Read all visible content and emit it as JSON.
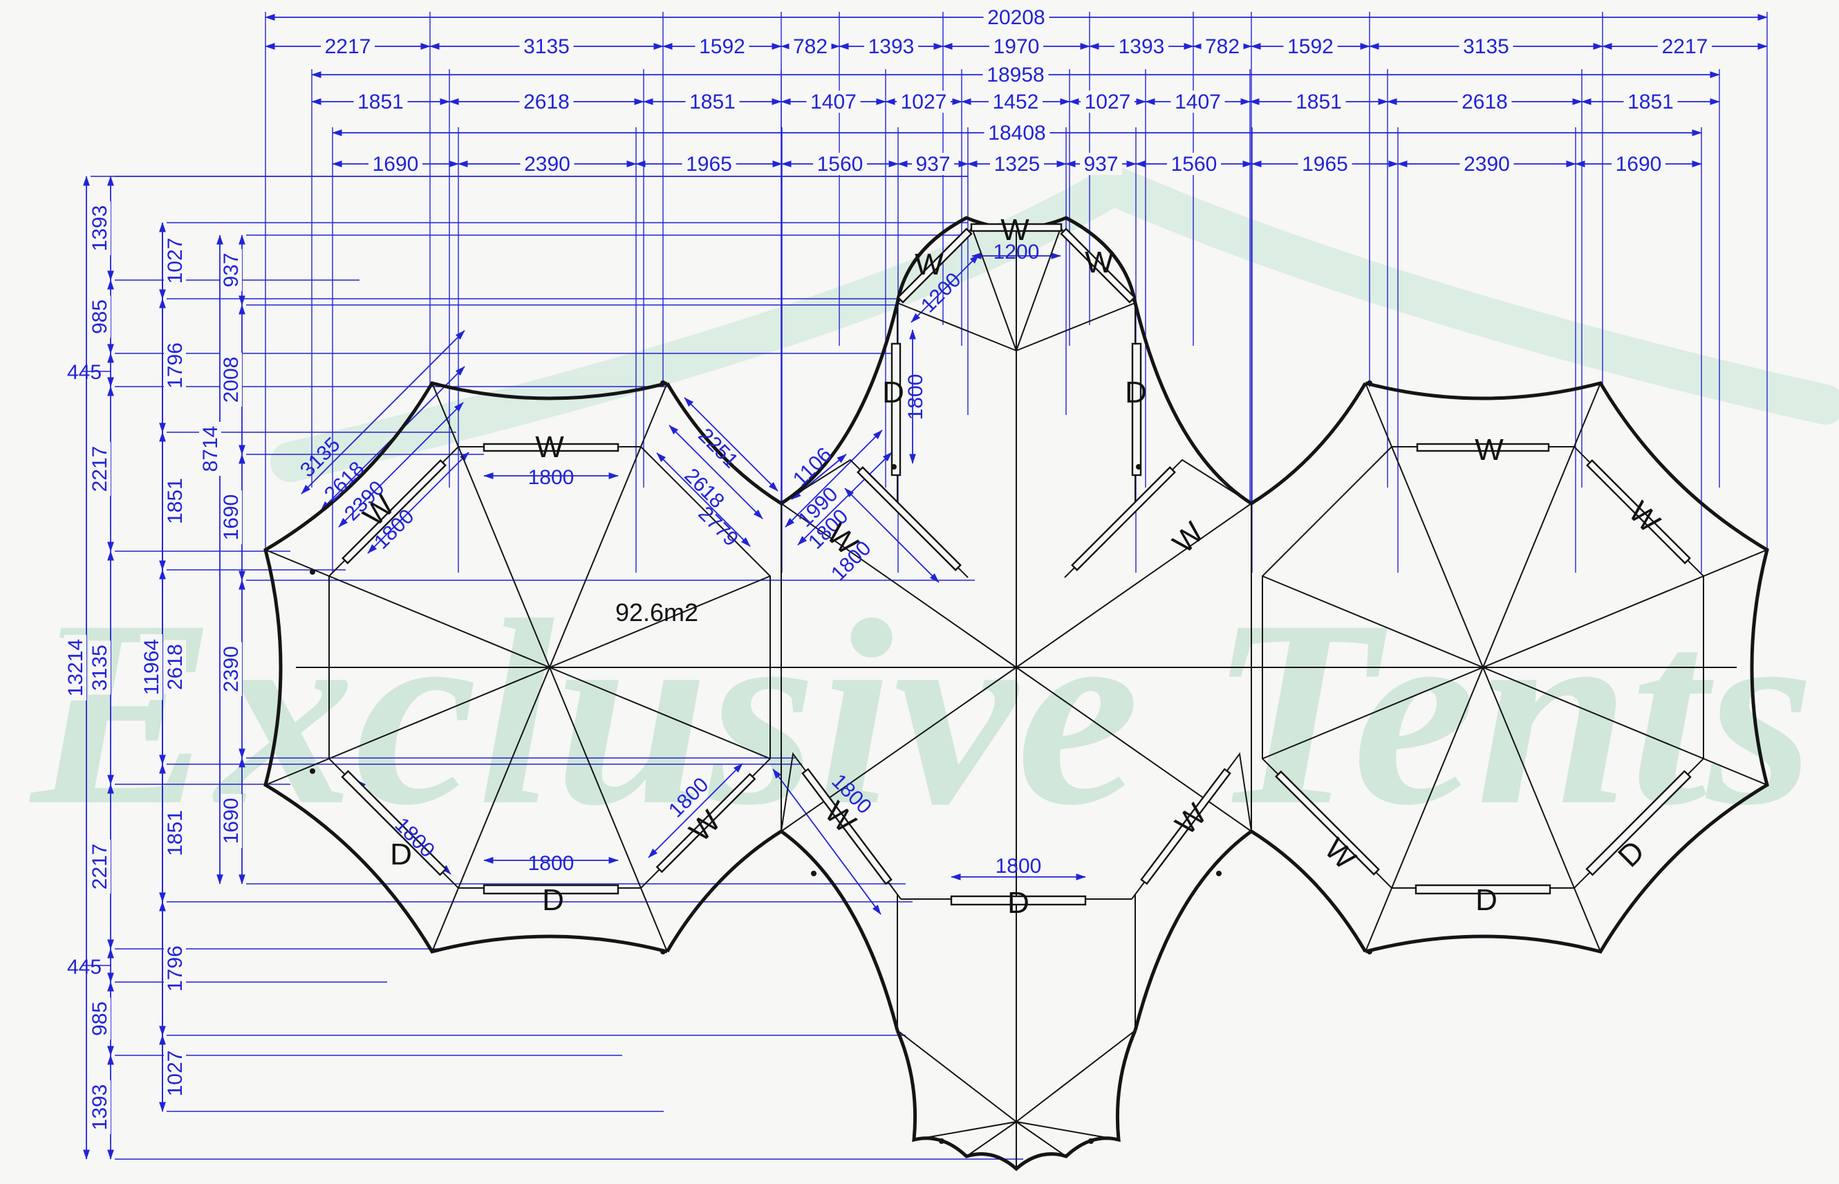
{
  "watermark": "Exclusive Tents",
  "area_label": "92.6m2",
  "dims": {
    "rows": [
      {
        "total": "20208",
        "segments": [
          "2217",
          "3135",
          "1592",
          "782",
          "1393",
          "1970",
          "1393",
          "782",
          "1592",
          "3135",
          "2217"
        ]
      },
      {
        "total": "18958",
        "segments": [
          "1851",
          "2618",
          "1851",
          "1407",
          "1027",
          "1452",
          "1027",
          "1407",
          "1851",
          "2618",
          "1851"
        ]
      },
      {
        "total": "18408",
        "segments": [
          "1690",
          "2390",
          "1965",
          "1560",
          "937",
          "1325",
          "937",
          "1560",
          "1965",
          "2390",
          "1690"
        ]
      }
    ],
    "cols": [
      {
        "total": "13214",
        "segments": []
      },
      {
        "total": "",
        "segments": [
          "1393",
          "985",
          "445",
          "2217",
          "3135",
          "2217",
          "445",
          "985",
          "1393"
        ]
      },
      {
        "total": "11964",
        "segments": [
          "1027",
          "1796",
          "1851",
          "2618",
          "1851",
          "1796",
          "1027"
        ]
      },
      {
        "total": "8714",
        "segments": [
          "937",
          "2008",
          "1690",
          "2390",
          "1690"
        ]
      }
    ]
  },
  "labels": {
    "lt_top_w": "W",
    "lt_top_1800": "1800",
    "lt_nw_3135": "3135",
    "lt_nw_2618": "2618",
    "lt_nw_2390": "2390",
    "lt_nw_1800": "1800",
    "lt_nw_w": "W",
    "lt_sw_d": "D",
    "lt_sw_1800": "1800",
    "lt_bot_1800": "1800",
    "lt_bot_d": "D",
    "lt_se_1800": "1800",
    "lt_se_w": "W",
    "tl_2251": "2251",
    "tl_2618": "2618",
    "tl_2779": "2779",
    "tr_1106": "1106",
    "tr_1990": "1990",
    "tr_1800": "1800",
    "conn_tl_w": "W",
    "conn_tl_1800": "1800",
    "tt_top_w": "W",
    "tt_top_1200": "1200",
    "tt_l_w": "W",
    "tt_l_1200": "1200",
    "tt_r_w": "W",
    "tt_l_d": "D",
    "tt_l_1800": "1800",
    "tt_r_d": "D",
    "conn_tr_w": "W",
    "ct_bl_1800": "1800",
    "ct_bl_w": "W",
    "ct_bot_1800": "1800",
    "ct_bot_d": "D",
    "conn_br_w": "W",
    "rt_top_w": "W",
    "rt_ne_w": "W",
    "rt_sw_w": "W",
    "rt_bot_d": "D",
    "rt_se_d": "D"
  }
}
